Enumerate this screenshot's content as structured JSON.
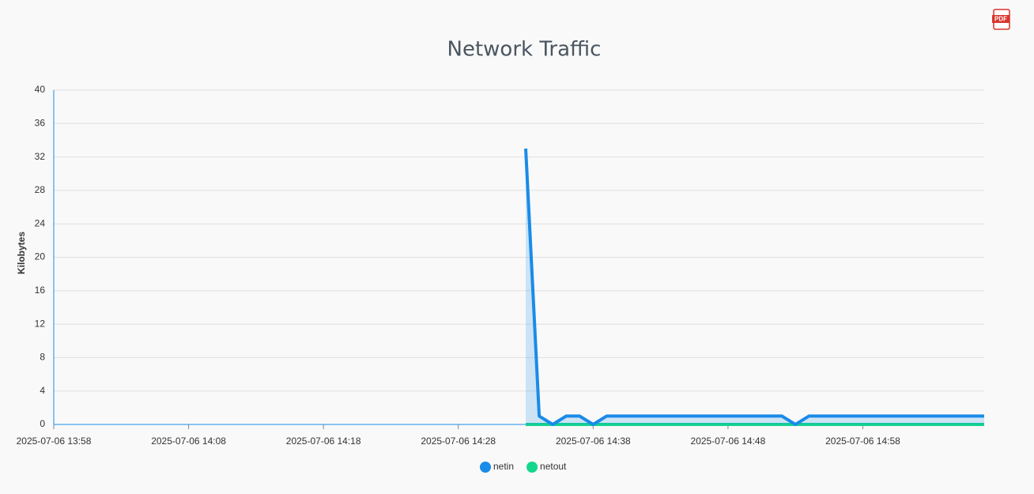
{
  "chart_data": {
    "type": "line",
    "title": "Network Traffic",
    "y_label": "Kilobytes",
    "x": [
      "2025-07-06 14:33",
      "2025-07-06 14:34",
      "2025-07-06 14:35",
      "2025-07-06 14:36",
      "2025-07-06 14:37",
      "2025-07-06 14:38",
      "2025-07-06 14:39",
      "2025-07-06 14:40",
      "2025-07-06 14:41",
      "2025-07-06 14:42",
      "2025-07-06 14:43",
      "2025-07-06 14:44",
      "2025-07-06 14:45",
      "2025-07-06 14:46",
      "2025-07-06 14:47",
      "2025-07-06 14:48",
      "2025-07-06 14:49",
      "2025-07-06 14:50",
      "2025-07-06 14:51",
      "2025-07-06 14:52",
      "2025-07-06 14:53",
      "2025-07-06 14:54",
      "2025-07-06 14:55",
      "2025-07-06 14:56",
      "2025-07-06 14:57",
      "2025-07-06 14:58",
      "2025-07-06 14:59",
      "2025-07-06 15:00",
      "2025-07-06 15:01",
      "2025-07-06 15:02",
      "2025-07-06 15:03",
      "2025-07-06 15:04",
      "2025-07-06 15:05",
      "2025-07-06 15:06",
      "2025-07-06 15:07"
    ],
    "series": [
      {
        "name": "netin",
        "color": "#1a8be8",
        "values": [
          33,
          1,
          0,
          1,
          1,
          0,
          1,
          1,
          1,
          1,
          1,
          1,
          1,
          1,
          1,
          1,
          1,
          1,
          1,
          1,
          0,
          1,
          1,
          1,
          1,
          1,
          1,
          1,
          1,
          1,
          1,
          1,
          1,
          1,
          1
        ]
      },
      {
        "name": "netout",
        "color": "#14d68c",
        "values": [
          0,
          0,
          0,
          0,
          0,
          0,
          0,
          0,
          0,
          0,
          0,
          0,
          0,
          0,
          0,
          0,
          0,
          0,
          0,
          0,
          0,
          0,
          0,
          0,
          0,
          0,
          0,
          0,
          0,
          0,
          0,
          0,
          0,
          0,
          0
        ]
      }
    ],
    "xlim": [
      "2025-07-06 13:58",
      "2025-07-06 15:07"
    ],
    "xticks": [
      "2025-07-06 13:58",
      "2025-07-06 14:08",
      "2025-07-06 14:18",
      "2025-07-06 14:28",
      "2025-07-06 14:38",
      "2025-07-06 14:48",
      "2025-07-06 14:58"
    ],
    "ylim": [
      0,
      40
    ],
    "yticks": [
      0,
      4,
      8,
      12,
      16,
      20,
      24,
      28,
      32,
      36,
      40
    ],
    "grid": true,
    "legend": "bottom"
  }
}
